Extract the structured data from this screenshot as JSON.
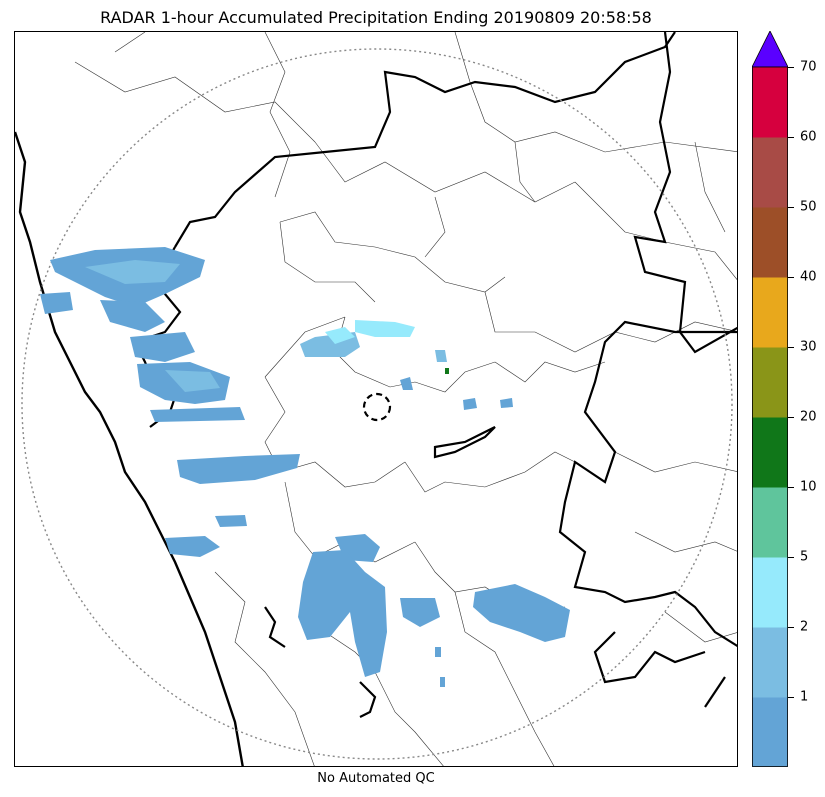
{
  "title": "RADAR 1-hour Accumulated Precipitation Ending 20190809 20:58:58",
  "footer": "No Automated QC",
  "colorbar": {
    "extend_color": "#5a00ff",
    "bins": [
      {
        "label": "1",
        "color": "#63a4d6"
      },
      {
        "label": "2",
        "color": "#7bbde2"
      },
      {
        "label": "5",
        "color": "#96eafc"
      },
      {
        "label": "10",
        "color": "#5fc59c"
      },
      {
        "label": "20",
        "color": "#107719"
      },
      {
        "label": "30",
        "color": "#8a9518"
      },
      {
        "label": "40",
        "color": "#e8a81c"
      },
      {
        "label": "50",
        "color": "#9d4f28"
      },
      {
        "label": "60",
        "color": "#a84b46"
      },
      {
        "label": "70",
        "color": "#d6003e"
      }
    ]
  },
  "map": {
    "radar_range_ring": "dotted",
    "radar_site_marker": "dashed-circle",
    "precip_color_light": "#63a4d6",
    "precip_color_mid": "#7bbde2",
    "precip_color_cyan": "#96eafc",
    "precip_color_green": "#107719"
  }
}
